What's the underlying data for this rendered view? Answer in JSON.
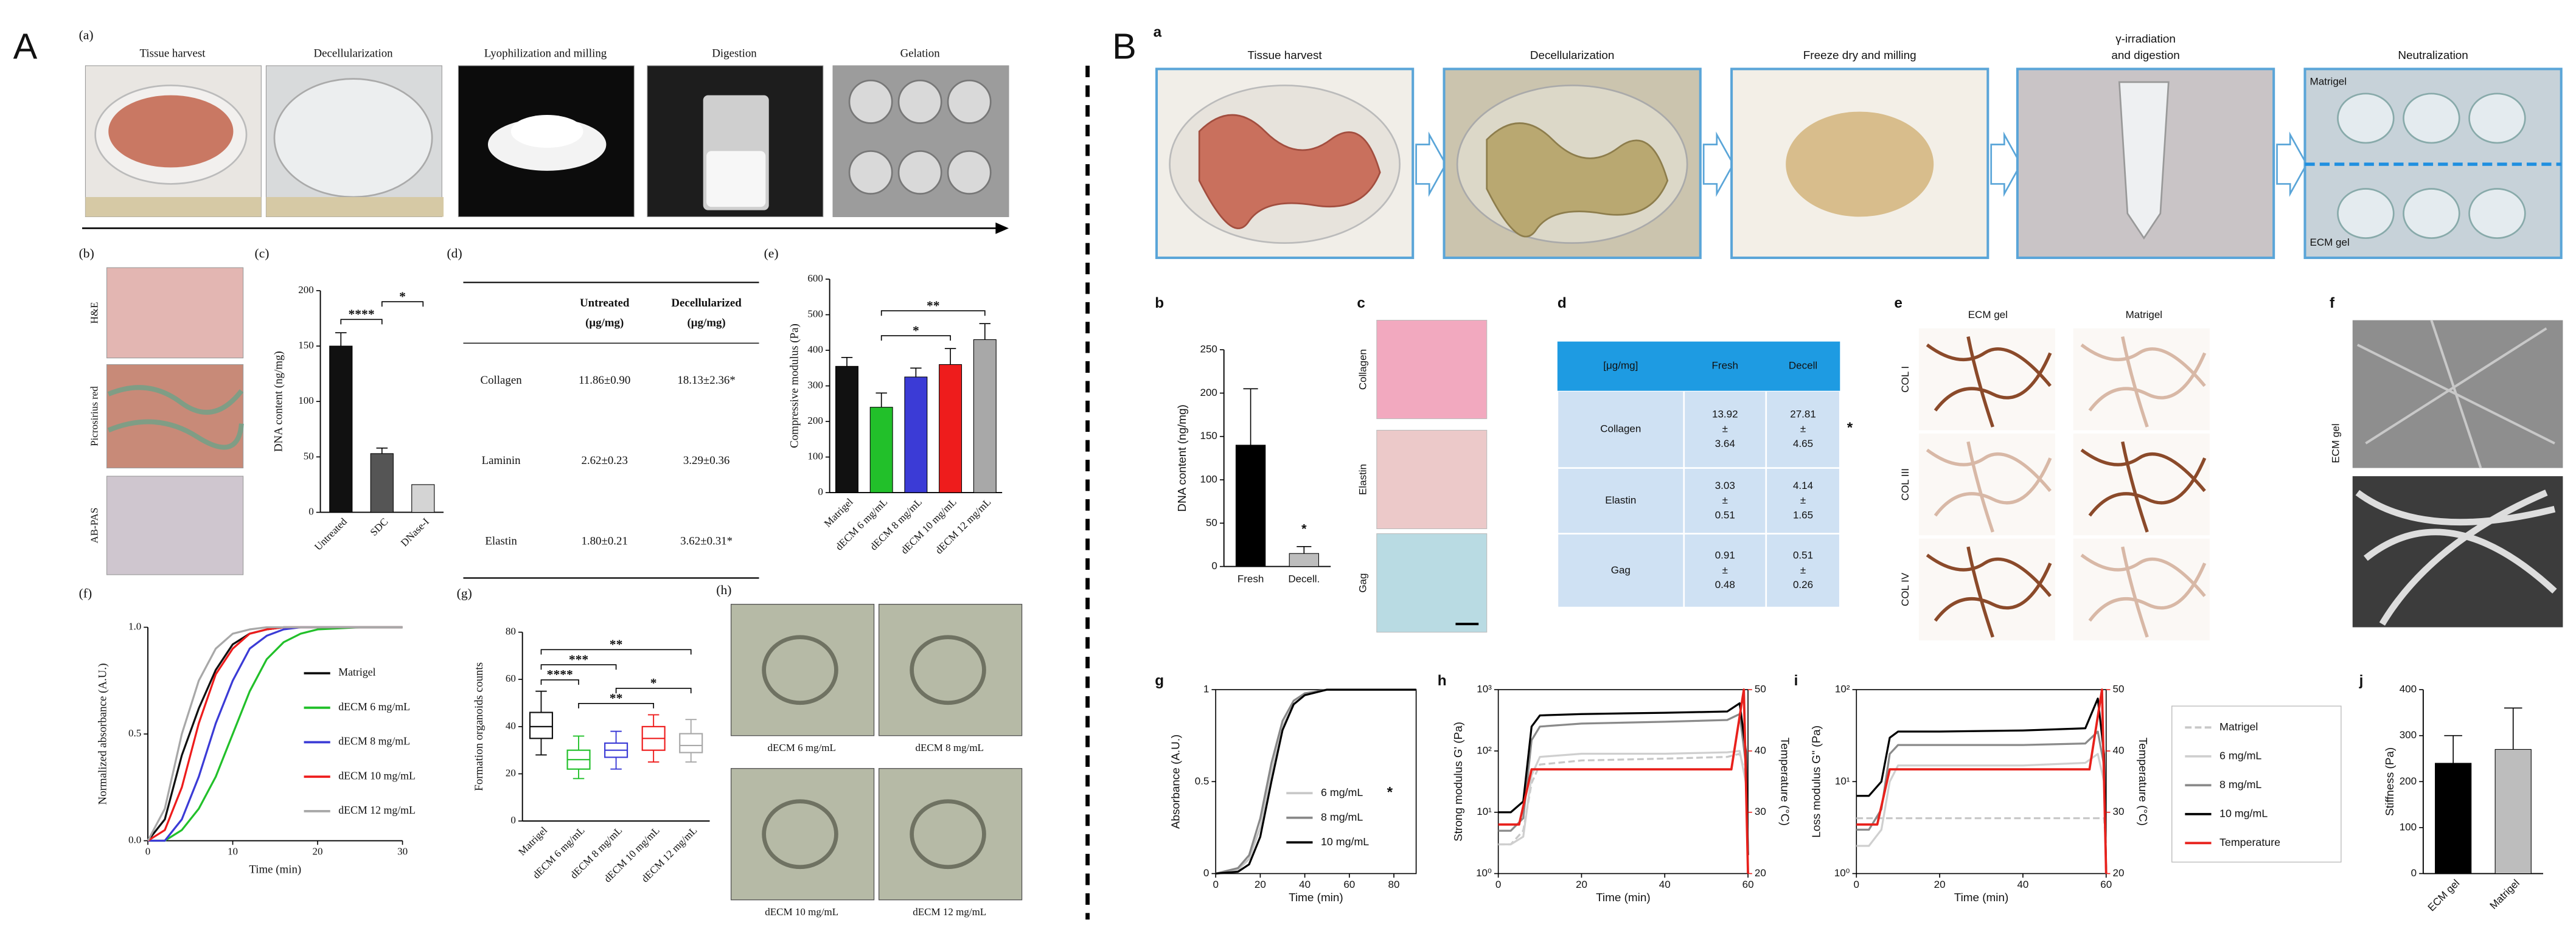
{
  "figure": {
    "A": {
      "label": "A",
      "a": "(a)",
      "steps": [
        "Tissue harvest",
        "Decellularization",
        "Lyophilization and milling",
        "Digestion",
        "Gelation"
      ],
      "b": "(b)",
      "stains": [
        "H&E",
        "Picrosirius red",
        "AB-PAS"
      ],
      "d": "(d)",
      "table": {
        "columns": [
          [
            "Untreated",
            "(μg/mg)"
          ],
          [
            "Decellularized",
            "(μg/mg)"
          ]
        ],
        "rows": [
          [
            "Collagen",
            "11.86±0.90",
            "18.13±2.36*"
          ],
          [
            "Laminin",
            "2.62±0.23",
            "3.29±0.36"
          ],
          [
            "Elastin",
            "1.80±0.21",
            "3.62±0.31*"
          ]
        ]
      },
      "h": "(h)",
      "h_captions": [
        "dECM 6 mg/mL",
        "dECM 8 mg/mL",
        "dECM 10 mg/mL",
        "dECM 12 mg/mL"
      ]
    },
    "B": {
      "label": "B",
      "a": "a",
      "steps": [
        [
          "Tissue harvest"
        ],
        [
          "Decellularization"
        ],
        [
          "Freeze dry and milling"
        ],
        [
          "γ-irradiation",
          "and digestion"
        ],
        [
          "Neutralization"
        ]
      ],
      "overlays": [
        "Matrigel",
        "ECM gel"
      ],
      "c": "c",
      "stains": [
        "Collagen",
        "Elastin",
        "Gag"
      ],
      "d": "d",
      "table": {
        "columns": [
          "[μg/mg]",
          "Fresh",
          "Decell"
        ],
        "rows": [
          {
            "name": "Collagen",
            "cells": [
              [
                "13.92",
                "±",
                "3.64"
              ],
              [
                "27.81",
                "±",
                "4.65"
              ]
            ]
          },
          {
            "name": "Elastin",
            "cells": [
              [
                "3.03",
                "±",
                "0.51"
              ],
              [
                "4.14",
                "±",
                "1.65"
              ]
            ]
          },
          {
            "name": "Gag",
            "cells": [
              [
                "0.91",
                "±",
                "0.48"
              ],
              [
                "0.51",
                "±",
                "0.26"
              ]
            ]
          }
        ],
        "mark": "*"
      },
      "e": "e",
      "e_columns": [
        "ECM gel",
        "Matrigel"
      ],
      "e_rows": [
        "COL I",
        "COL III",
        "COL IV"
      ],
      "f": "f",
      "f_label": "ECM gel"
    }
  },
  "chart_data": [
    {
      "type": "bar",
      "panel": "(c)",
      "ylabel": "DNA content (ng/mg)",
      "categories": [
        "Untreated",
        "SDC",
        "DNase-I"
      ],
      "values": [
        150,
        53,
        25
      ],
      "errors": [
        12,
        5,
        null
      ],
      "colors": [
        "#111111",
        "#555555",
        "#d4d4d4"
      ],
      "ylim": [
        0,
        200
      ],
      "yticks": [
        0,
        50,
        100,
        150,
        200
      ],
      "significance": [
        {
          "label": "****",
          "between": [
            0,
            1
          ]
        },
        {
          "label": "*",
          "between": [
            1,
            2
          ]
        }
      ]
    },
    {
      "type": "bar",
      "panel": "(e)",
      "ylabel": "Compressive modulus (Pa)",
      "categories": [
        "Matrigel",
        "dECM 6 mg/mL",
        "dECM 8 mg/mL",
        "dECM 10 mg/mL",
        "dECM 12 mg/mL"
      ],
      "values": [
        355,
        240,
        325,
        360,
        430
      ],
      "errors": [
        25,
        40,
        25,
        45,
        45
      ],
      "colors": [
        "#111111",
        "#22c02a",
        "#3b3bd6",
        "#ee1c1c",
        "#a8a8a8"
      ],
      "ylim": [
        0,
        600
      ],
      "yticks": [
        0,
        100,
        200,
        300,
        400,
        500,
        600
      ],
      "significance": [
        {
          "label": "*",
          "between": [
            1,
            3
          ]
        },
        {
          "label": "**",
          "between": [
            1,
            4
          ]
        }
      ]
    },
    {
      "type": "line",
      "panel": "(f)",
      "ylabel": "Normalized absorbance (A.U.)",
      "xlabel": "Time (min)",
      "x": [
        0,
        2,
        4,
        6,
        8,
        10,
        12,
        14,
        16,
        18,
        20,
        25,
        30
      ],
      "xlim": [
        0,
        30
      ],
      "xticks": [
        0,
        10,
        20,
        30
      ],
      "ylim": [
        0,
        1
      ],
      "yticks": [
        {
          "value": 0,
          "label": "0.0"
        },
        {
          "value": 0.5,
          "label": "0.5"
        },
        {
          "value": 1,
          "label": "1.0"
        }
      ],
      "legend": "right",
      "series": [
        {
          "name": "Matrigel",
          "color": "#111111",
          "values": [
            0,
            0.1,
            0.4,
            0.62,
            0.8,
            0.92,
            0.97,
            0.99,
            1,
            1,
            1,
            1,
            1
          ]
        },
        {
          "name": "dECM 6 mg/mL",
          "color": "#22c02a",
          "values": [
            0,
            0,
            0.05,
            0.15,
            0.3,
            0.5,
            0.7,
            0.85,
            0.93,
            0.97,
            0.99,
            1,
            1
          ]
        },
        {
          "name": "dECM 8 mg/mL",
          "color": "#3b3bd6",
          "values": [
            0,
            0,
            0.1,
            0.3,
            0.55,
            0.75,
            0.9,
            0.96,
            0.99,
            1,
            1,
            1,
            1
          ]
        },
        {
          "name": "dECM 10 mg/mL",
          "color": "#ee1c1c",
          "values": [
            0,
            0.05,
            0.25,
            0.55,
            0.78,
            0.9,
            0.97,
            0.99,
            1,
            1,
            1,
            1,
            1
          ]
        },
        {
          "name": "dECM 12 mg/mL",
          "color": "#a8a8a8",
          "values": [
            0,
            0.15,
            0.5,
            0.75,
            0.9,
            0.97,
            0.99,
            1,
            1,
            1,
            1,
            1,
            1
          ]
        }
      ]
    },
    {
      "type": "box",
      "panel": "(g)",
      "ylabel": "Formation organoids counts",
      "categories": [
        "Matrigel",
        "dECM 6 mg/mL",
        "dECM 8 mg/mL",
        "dECM 10 mg/mL",
        "dECM 12 mg/mL"
      ],
      "boxes": [
        {
          "min": 28,
          "q1": 35,
          "median": 40,
          "q3": 46,
          "max": 55
        },
        {
          "min": 18,
          "q1": 22,
          "median": 26,
          "q3": 30,
          "max": 36
        },
        {
          "min": 22,
          "q1": 27,
          "median": 30,
          "q3": 33,
          "max": 38
        },
        {
          "min": 25,
          "q1": 30,
          "median": 35,
          "q3": 40,
          "max": 45
        },
        {
          "min": 25,
          "q1": 29,
          "median": 32,
          "q3": 37,
          "max": 43
        }
      ],
      "colors": [
        "#111111",
        "#22c02a",
        "#3b3bd6",
        "#ee1c1c",
        "#a8a8a8"
      ],
      "ylim": [
        0,
        80
      ],
      "yticks": [
        0,
        20,
        40,
        60,
        80
      ],
      "significance": [
        {
          "label": "**",
          "between": [
            1,
            3
          ]
        },
        {
          "label": "*",
          "between": [
            2,
            4
          ]
        },
        {
          "label": "****",
          "between": [
            0,
            1
          ]
        },
        {
          "label": "***",
          "between": [
            0,
            2
          ]
        },
        {
          "label": "**",
          "between": [
            0,
            4
          ]
        }
      ]
    },
    {
      "type": "bar",
      "panel": "b",
      "ylabel": "DNA content (ng/mg)",
      "categories": [
        "Fresh",
        "Decell."
      ],
      "values": [
        140,
        15
      ],
      "errors": [
        65,
        8
      ],
      "colors": [
        "#000000",
        "#bdbdbd"
      ],
      "ylim": [
        0,
        250
      ],
      "yticks": [
        0,
        50,
        100,
        150,
        200,
        250
      ],
      "significance": [
        {
          "label": "*",
          "between": [
            1,
            1
          ]
        }
      ]
    },
    {
      "type": "line",
      "panel": "g",
      "ylabel": "Absorbance (A.U.)",
      "xlabel": "Time (min)",
      "x": [
        0,
        10,
        15,
        20,
        25,
        30,
        35,
        40,
        50,
        60,
        90
      ],
      "xlim": [
        0,
        90
      ],
      "xticks": [
        0,
        20,
        40,
        60,
        80
      ],
      "ylim": [
        0,
        1
      ],
      "yticks": [
        0,
        0.5,
        1
      ],
      "legend": "lower right",
      "annotation": "*",
      "series": [
        {
          "name": "6 mg/mL",
          "color": "#c8c8c8",
          "values": [
            0,
            0.02,
            0.08,
            0.25,
            0.55,
            0.8,
            0.92,
            0.97,
            1,
            1,
            1
          ]
        },
        {
          "name": "8 mg/mL",
          "color": "#888888",
          "values": [
            0,
            0.03,
            0.1,
            0.3,
            0.6,
            0.83,
            0.94,
            0.98,
            1,
            1,
            1
          ]
        },
        {
          "name": "10 mg/mL",
          "color": "#000000",
          "values": [
            0,
            0.01,
            0.05,
            0.2,
            0.5,
            0.78,
            0.92,
            0.97,
            1,
            1,
            1
          ]
        }
      ]
    },
    {
      "type": "line",
      "panel": "h",
      "ylabel": "Strong modulus G' (Pa)",
      "xlabel": "Time (min)",
      "y2label": "Temperature (°C)",
      "x": [
        0,
        3,
        6,
        8,
        10,
        20,
        40,
        55,
        58,
        59.5,
        60
      ],
      "xlim": [
        0,
        60
      ],
      "xticks": [
        0,
        20,
        40,
        60
      ],
      "log_y": true,
      "ylim": [
        1,
        1000
      ],
      "yticks": [
        {
          "value": 1,
          "label": "10⁰"
        },
        {
          "value": 10,
          "label": "10¹"
        },
        {
          "value": 100,
          "label": "10²"
        },
        {
          "value": 1000,
          "label": "10³"
        }
      ],
      "y2lim": [
        20,
        50
      ],
      "y2ticks": [
        20,
        30,
        40,
        50
      ],
      "series": [
        {
          "name": "Matrigel",
          "color": "#c8c8c8",
          "dash": true,
          "values": [
            3,
            3,
            5,
            30,
            60,
            70,
            75,
            80,
            90,
            40,
            2
          ]
        },
        {
          "name": "6 mg/mL",
          "color": "#cfcfcf",
          "values": [
            3,
            3,
            4,
            40,
            80,
            90,
            90,
            95,
            100,
            30,
            2
          ]
        },
        {
          "name": "8 mg/mL",
          "color": "#8a8a8a",
          "values": [
            5,
            5,
            8,
            150,
            250,
            280,
            300,
            320,
            400,
            60,
            2
          ]
        },
        {
          "name": "10 mg/mL",
          "color": "#000000",
          "values": [
            10,
            10,
            15,
            250,
            380,
            400,
            420,
            440,
            600,
            100,
            2
          ]
        },
        {
          "name": "Temperature",
          "color": "#e8211c",
          "axis": "y2",
          "x": [
            0,
            5,
            8,
            56,
            59,
            60
          ],
          "values": [
            28,
            28,
            37,
            37,
            50,
            20
          ]
        }
      ]
    },
    {
      "type": "line",
      "panel": "i",
      "ylabel": "Loss modulus G'' (Pa)",
      "xlabel": "Time (min)",
      "y2label": "Temperature (°C)",
      "x": [
        0,
        3,
        6,
        8,
        10,
        20,
        40,
        55,
        58,
        59.5,
        60
      ],
      "xlim": [
        0,
        60
      ],
      "xticks": [
        0,
        20,
        40,
        60
      ],
      "log_y": true,
      "ylim": [
        1,
        100
      ],
      "yticks": [
        {
          "value": 1,
          "label": "10⁰"
        },
        {
          "value": 10,
          "label": "10¹"
        },
        {
          "value": 100,
          "label": "10²"
        }
      ],
      "y2lim": [
        20,
        50
      ],
      "y2ticks": [
        20,
        30,
        40,
        50
      ],
      "legend": "outside right",
      "series": [
        {
          "name": "Matrigel",
          "color": "#c8c8c8",
          "dash": true,
          "values": [
            4,
            4,
            4,
            4,
            4,
            4,
            4,
            4,
            4,
            4,
            2
          ]
        },
        {
          "name": "6 mg/mL",
          "color": "#cfcfcf",
          "values": [
            2,
            2,
            3,
            10,
            15,
            15,
            15,
            16,
            20,
            10,
            1
          ]
        },
        {
          "name": "8 mg/mL",
          "color": "#8a8a8a",
          "values": [
            3,
            3,
            5,
            20,
            25,
            25,
            25,
            26,
            35,
            15,
            1
          ]
        },
        {
          "name": "10 mg/mL",
          "color": "#000000",
          "values": [
            7,
            7,
            10,
            30,
            35,
            35,
            36,
            38,
            80,
            20,
            1
          ]
        },
        {
          "name": "Temperature",
          "color": "#e8211c",
          "axis": "y2",
          "x": [
            0,
            5,
            8,
            56,
            59,
            60
          ],
          "values": [
            28,
            28,
            37,
            37,
            50,
            20
          ]
        }
      ]
    },
    {
      "type": "bar",
      "panel": "j",
      "ylabel": "Stiffness (Pa)",
      "categories": [
        "ECM gel",
        "Matrigel"
      ],
      "values": [
        240,
        270
      ],
      "errors": [
        60,
        90
      ],
      "colors": [
        "#000000",
        "#bdbdbd"
      ],
      "ylim": [
        0,
        400
      ],
      "yticks": [
        0,
        100,
        200,
        300,
        400
      ]
    }
  ]
}
